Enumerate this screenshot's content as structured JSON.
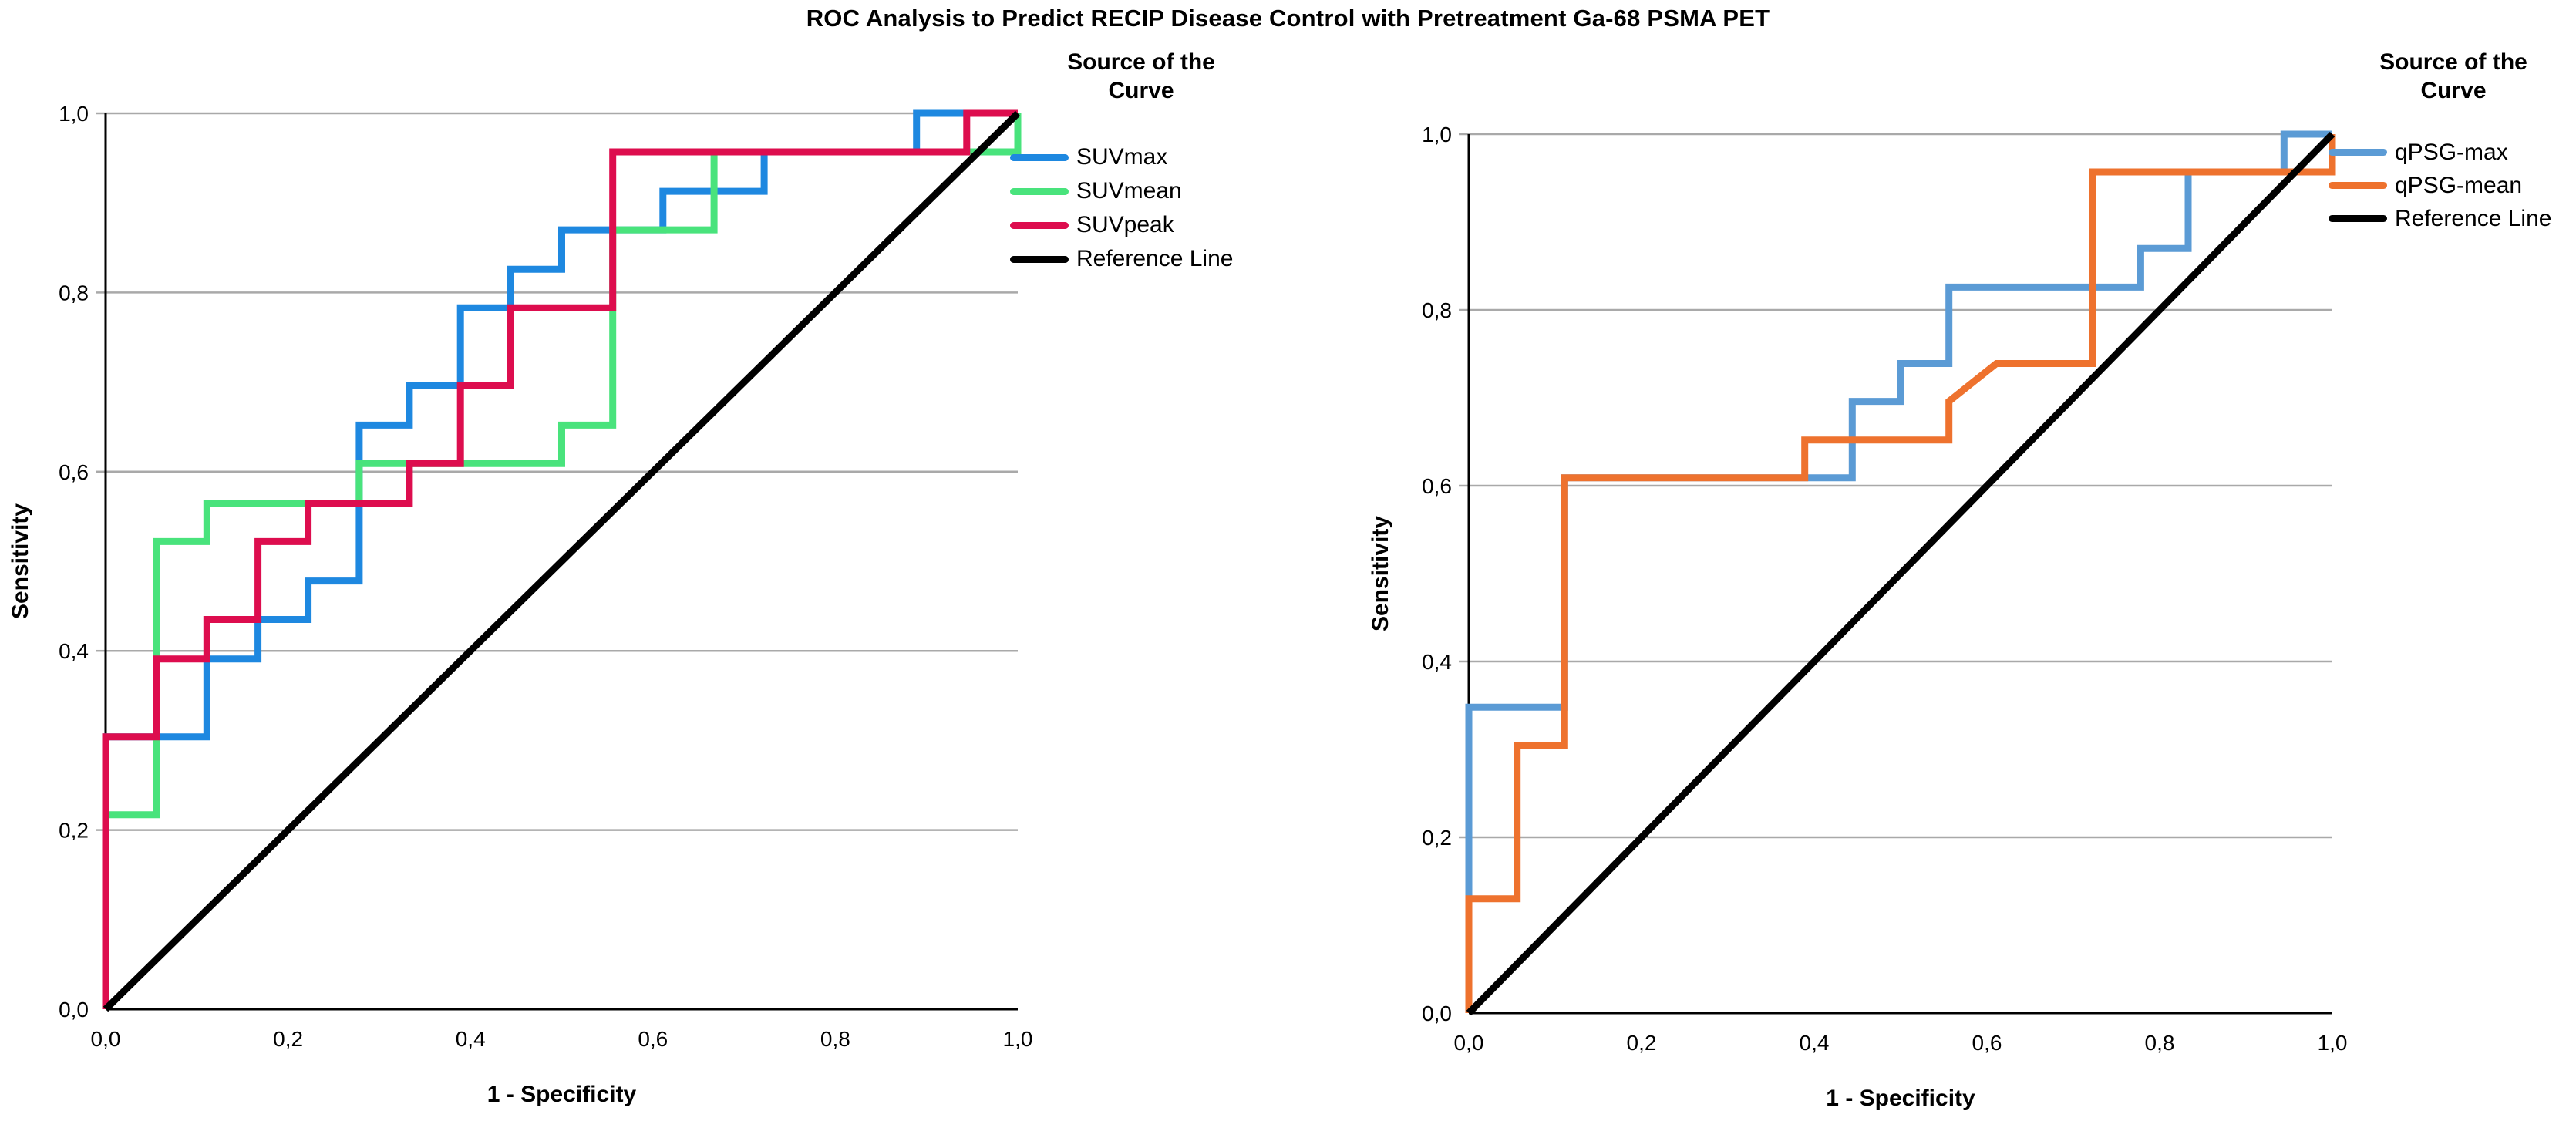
{
  "title": "ROC Analysis to Predict RECIP Disease Control with Pretreatment Ga-68 PSMA PET",
  "colors": {
    "grid": "#a9a9a9",
    "axis": "#000000",
    "suvmax_blue": "#1e88e0",
    "suvmean_green": "#49e37c",
    "suvpeak_red": "#dd0d4e",
    "qpsg_max_blue": "#5b9bd5",
    "qpsg_mean_orange": "#ee722e",
    "reference_black": "#000000"
  },
  "chart_data": [
    {
      "type": "line",
      "subtype": "roc-step",
      "title": "",
      "xlabel": "1 - Specificity",
      "ylabel": "Sensitivity",
      "legend_title": "Source of the Curve",
      "legend_position": "top-right-outside",
      "xlim": [
        0,
        1
      ],
      "ylim": [
        0,
        1
      ],
      "grid": "horizontal",
      "x_tick_labels": [
        "0,0",
        "0,2",
        "0,4",
        "0,6",
        "0,8",
        "1,0"
      ],
      "y_tick_labels": [
        "0,0",
        "0,2",
        "0,4",
        "0,6",
        "0,8",
        "1,0"
      ],
      "series": [
        {
          "name": "SUVmax",
          "color": "#1e88e0",
          "points": [
            [
              0,
              0
            ],
            [
              0,
              0.304
            ],
            [
              0.111,
              0.304
            ],
            [
              0.111,
              0.391
            ],
            [
              0.167,
              0.391
            ],
            [
              0.167,
              0.435
            ],
            [
              0.222,
              0.435
            ],
            [
              0.222,
              0.478
            ],
            [
              0.278,
              0.478
            ],
            [
              0.278,
              0.652
            ],
            [
              0.333,
              0.652
            ],
            [
              0.333,
              0.696
            ],
            [
              0.389,
              0.696
            ],
            [
              0.389,
              0.783
            ],
            [
              0.444,
              0.783
            ],
            [
              0.444,
              0.826
            ],
            [
              0.5,
              0.826
            ],
            [
              0.5,
              0.87
            ],
            [
              0.611,
              0.87
            ],
            [
              0.611,
              0.913
            ],
            [
              0.722,
              0.913
            ],
            [
              0.722,
              0.957
            ],
            [
              0.889,
              0.957
            ],
            [
              0.889,
              1
            ],
            [
              1,
              1
            ]
          ]
        },
        {
          "name": "SUVmean",
          "color": "#49e37c",
          "points": [
            [
              0,
              0
            ],
            [
              0,
              0.217
            ],
            [
              0.056,
              0.217
            ],
            [
              0.056,
              0.522
            ],
            [
              0.111,
              0.522
            ],
            [
              0.111,
              0.565
            ],
            [
              0.278,
              0.565
            ],
            [
              0.278,
              0.609
            ],
            [
              0.5,
              0.609
            ],
            [
              0.5,
              0.652
            ],
            [
              0.556,
              0.652
            ],
            [
              0.556,
              0.87
            ],
            [
              0.667,
              0.87
            ],
            [
              0.667,
              0.957
            ],
            [
              1,
              0.957
            ],
            [
              1,
              1
            ]
          ]
        },
        {
          "name": "SUVpeak",
          "color": "#dd0d4e",
          "points": [
            [
              0,
              0
            ],
            [
              0,
              0.304
            ],
            [
              0.056,
              0.304
            ],
            [
              0.056,
              0.391
            ],
            [
              0.111,
              0.391
            ],
            [
              0.111,
              0.435
            ],
            [
              0.167,
              0.435
            ],
            [
              0.167,
              0.522
            ],
            [
              0.222,
              0.522
            ],
            [
              0.222,
              0.565
            ],
            [
              0.333,
              0.565
            ],
            [
              0.333,
              0.609
            ],
            [
              0.389,
              0.609
            ],
            [
              0.389,
              0.696
            ],
            [
              0.444,
              0.696
            ],
            [
              0.444,
              0.783
            ],
            [
              0.556,
              0.783
            ],
            [
              0.556,
              0.957
            ],
            [
              0.944,
              0.957
            ],
            [
              0.944,
              1
            ],
            [
              1,
              1
            ]
          ]
        },
        {
          "name": "Reference Line",
          "color": "#000000",
          "points": [
            [
              0,
              0
            ],
            [
              1,
              1
            ]
          ]
        }
      ]
    },
    {
      "type": "line",
      "subtype": "roc-step",
      "title": "",
      "xlabel": "1 - Specificity",
      "ylabel": "Sensitivity",
      "legend_title": "Source of the Curve",
      "legend_position": "top-right-outside",
      "xlim": [
        0,
        1
      ],
      "ylim": [
        0,
        1
      ],
      "grid": "horizontal",
      "x_tick_labels": [
        "0,0",
        "0,2",
        "0,4",
        "0,6",
        "0,8",
        "1,0"
      ],
      "y_tick_labels": [
        "0,0",
        "0,2",
        "0,4",
        "0,6",
        "0,8",
        "1,0"
      ],
      "series": [
        {
          "name": "qPSG-max",
          "color": "#5b9bd5",
          "points": [
            [
              0,
              0
            ],
            [
              0,
              0.348
            ],
            [
              0.111,
              0.348
            ],
            [
              0.111,
              0.609
            ],
            [
              0.444,
              0.609
            ],
            [
              0.444,
              0.696
            ],
            [
              0.5,
              0.696
            ],
            [
              0.5,
              0.739
            ],
            [
              0.556,
              0.739
            ],
            [
              0.556,
              0.826
            ],
            [
              0.778,
              0.826
            ],
            [
              0.778,
              0.87
            ],
            [
              0.833,
              0.87
            ],
            [
              0.833,
              0.957
            ],
            [
              0.944,
              0.957
            ],
            [
              0.944,
              1
            ],
            [
              1,
              1
            ]
          ]
        },
        {
          "name": "qPSG-mean",
          "color": "#ee722e",
          "points": [
            [
              0,
              0
            ],
            [
              0,
              0.13
            ],
            [
              0.056,
              0.13
            ],
            [
              0.056,
              0.304
            ],
            [
              0.111,
              0.304
            ],
            [
              0.111,
              0.609
            ],
            [
              0.389,
              0.609
            ],
            [
              0.389,
              0.652
            ],
            [
              0.556,
              0.652
            ],
            [
              0.556,
              0.696
            ],
            [
              0.611,
              0.739
            ],
            [
              0.722,
              0.739
            ],
            [
              0.722,
              0.957
            ],
            [
              1,
              0.957
            ],
            [
              1,
              1
            ]
          ]
        },
        {
          "name": "Reference Line",
          "color": "#000000",
          "points": [
            [
              0,
              0
            ],
            [
              1,
              1
            ]
          ]
        }
      ]
    }
  ]
}
